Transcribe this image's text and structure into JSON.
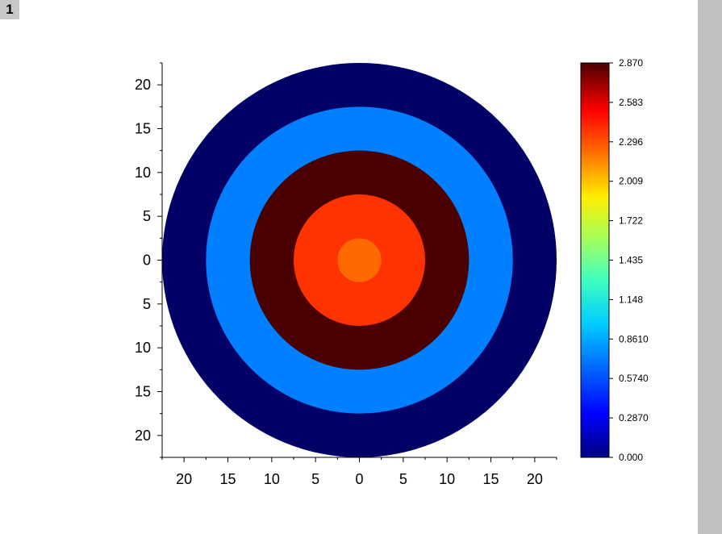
{
  "layer_tab": "1",
  "chart_data": {
    "type": "contour",
    "x_ticks": [
      {
        "value": -20,
        "label": "20"
      },
      {
        "value": -15,
        "label": "15"
      },
      {
        "value": -10,
        "label": "10"
      },
      {
        "value": -5,
        "label": "5"
      },
      {
        "value": 0,
        "label": "0"
      },
      {
        "value": 5,
        "label": "5"
      },
      {
        "value": 10,
        "label": "10"
      },
      {
        "value": 15,
        "label": "15"
      },
      {
        "value": 20,
        "label": "20"
      }
    ],
    "y_ticks": [
      {
        "value": 20,
        "label": "20"
      },
      {
        "value": 15,
        "label": "15"
      },
      {
        "value": 10,
        "label": "10"
      },
      {
        "value": 5,
        "label": "5"
      },
      {
        "value": 0,
        "label": "0"
      },
      {
        "value": -5,
        "label": "5"
      },
      {
        "value": -10,
        "label": "10"
      },
      {
        "value": -15,
        "label": "15"
      },
      {
        "value": -20,
        "label": "20"
      }
    ],
    "xlim": [
      -22.5,
      22.5
    ],
    "ylim": [
      -22.5,
      22.5
    ],
    "rings": [
      {
        "outer_radius": 22.5,
        "color": "#000066"
      },
      {
        "outer_radius": 17.5,
        "color": "#0080ff"
      },
      {
        "outer_radius": 12.5,
        "color": "#4a0000"
      },
      {
        "outer_radius": 7.5,
        "color": "#ff3300"
      },
      {
        "outer_radius": 2.5,
        "color": "#ff6a00"
      }
    ],
    "colorbar": {
      "min": 0,
      "max": 2.87,
      "tick_labels": [
        "0.000",
        "0.2870",
        "0.5740",
        "0.8610",
        "1.148",
        "1.435",
        "1.722",
        "2.009",
        "2.296",
        "2.583",
        "2.870"
      ],
      "stops": [
        {
          "offset": 0.0,
          "color": "#00007f"
        },
        {
          "offset": 0.11,
          "color": "#0000ff"
        },
        {
          "offset": 0.34,
          "color": "#00ccff"
        },
        {
          "offset": 0.45,
          "color": "#40ffbf"
        },
        {
          "offset": 0.55,
          "color": "#a0ff60"
        },
        {
          "offset": 0.66,
          "color": "#ffee00"
        },
        {
          "offset": 0.78,
          "color": "#ff6600"
        },
        {
          "offset": 0.88,
          "color": "#ff0000"
        },
        {
          "offset": 1.0,
          "color": "#4a0000"
        }
      ]
    }
  }
}
